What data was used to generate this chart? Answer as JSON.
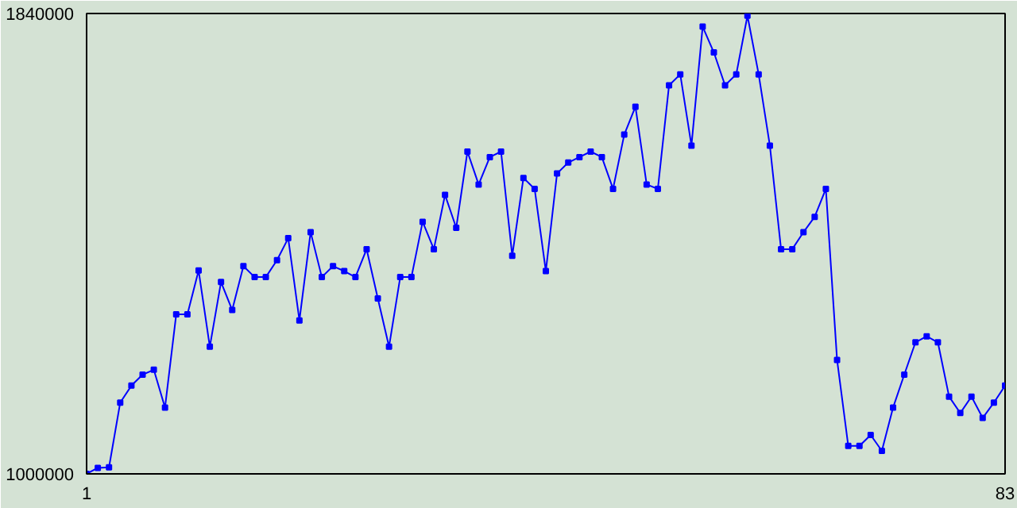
{
  "chart_data": {
    "type": "line",
    "x": [
      1,
      2,
      3,
      4,
      5,
      6,
      7,
      8,
      9,
      10,
      11,
      12,
      13,
      14,
      15,
      16,
      17,
      18,
      19,
      20,
      21,
      22,
      23,
      24,
      25,
      26,
      27,
      28,
      29,
      30,
      31,
      32,
      33,
      34,
      35,
      36,
      37,
      38,
      39,
      40,
      41,
      42,
      43,
      44,
      45,
      46,
      47,
      48,
      49,
      50,
      51,
      52,
      53,
      54,
      55,
      56,
      57,
      58,
      59,
      60,
      61,
      62,
      63,
      64,
      65,
      66,
      67,
      68,
      69,
      70,
      71,
      72,
      73,
      74,
      75,
      76,
      77,
      78,
      79,
      80,
      81,
      82,
      83
    ],
    "series": [
      {
        "color": "#0000ff",
        "values": [
          1000000,
          1011000,
          1012000,
          1130000,
          1161000,
          1181000,
          1190000,
          1121000,
          1291000,
          1291000,
          1371000,
          1232000,
          1350000,
          1299000,
          1379000,
          1359000,
          1359000,
          1390000,
          1430000,
          1280000,
          1441000,
          1359000,
          1379000,
          1370000,
          1359000,
          1410000,
          1320000,
          1232000,
          1359000,
          1359000,
          1460000,
          1410000,
          1509000,
          1449000,
          1588000,
          1528000,
          1578000,
          1588000,
          1398000,
          1540000,
          1520000,
          1370000,
          1548000,
          1568000,
          1578000,
          1588000,
          1578000,
          1520000,
          1619000,
          1670000,
          1528000,
          1520000,
          1709000,
          1729000,
          1599000,
          1816000,
          1769000,
          1709000,
          1729000,
          1836000,
          1729000,
          1599000,
          1410000,
          1410000,
          1441000,
          1469000,
          1520000,
          1208000,
          1051000,
          1051000,
          1071000,
          1042000,
          1121000,
          1181000,
          1240000,
          1251000,
          1240000,
          1141000,
          1111000,
          1141000,
          1102000,
          1130000,
          1161000
        ]
      }
    ],
    "xlim": [
      1,
      83
    ],
    "xticks": [
      1,
      83
    ],
    "ylim": [
      1000000,
      1840000
    ],
    "yticks": [
      1000000,
      1840000
    ],
    "marker": "square",
    "line_style": "solid"
  }
}
